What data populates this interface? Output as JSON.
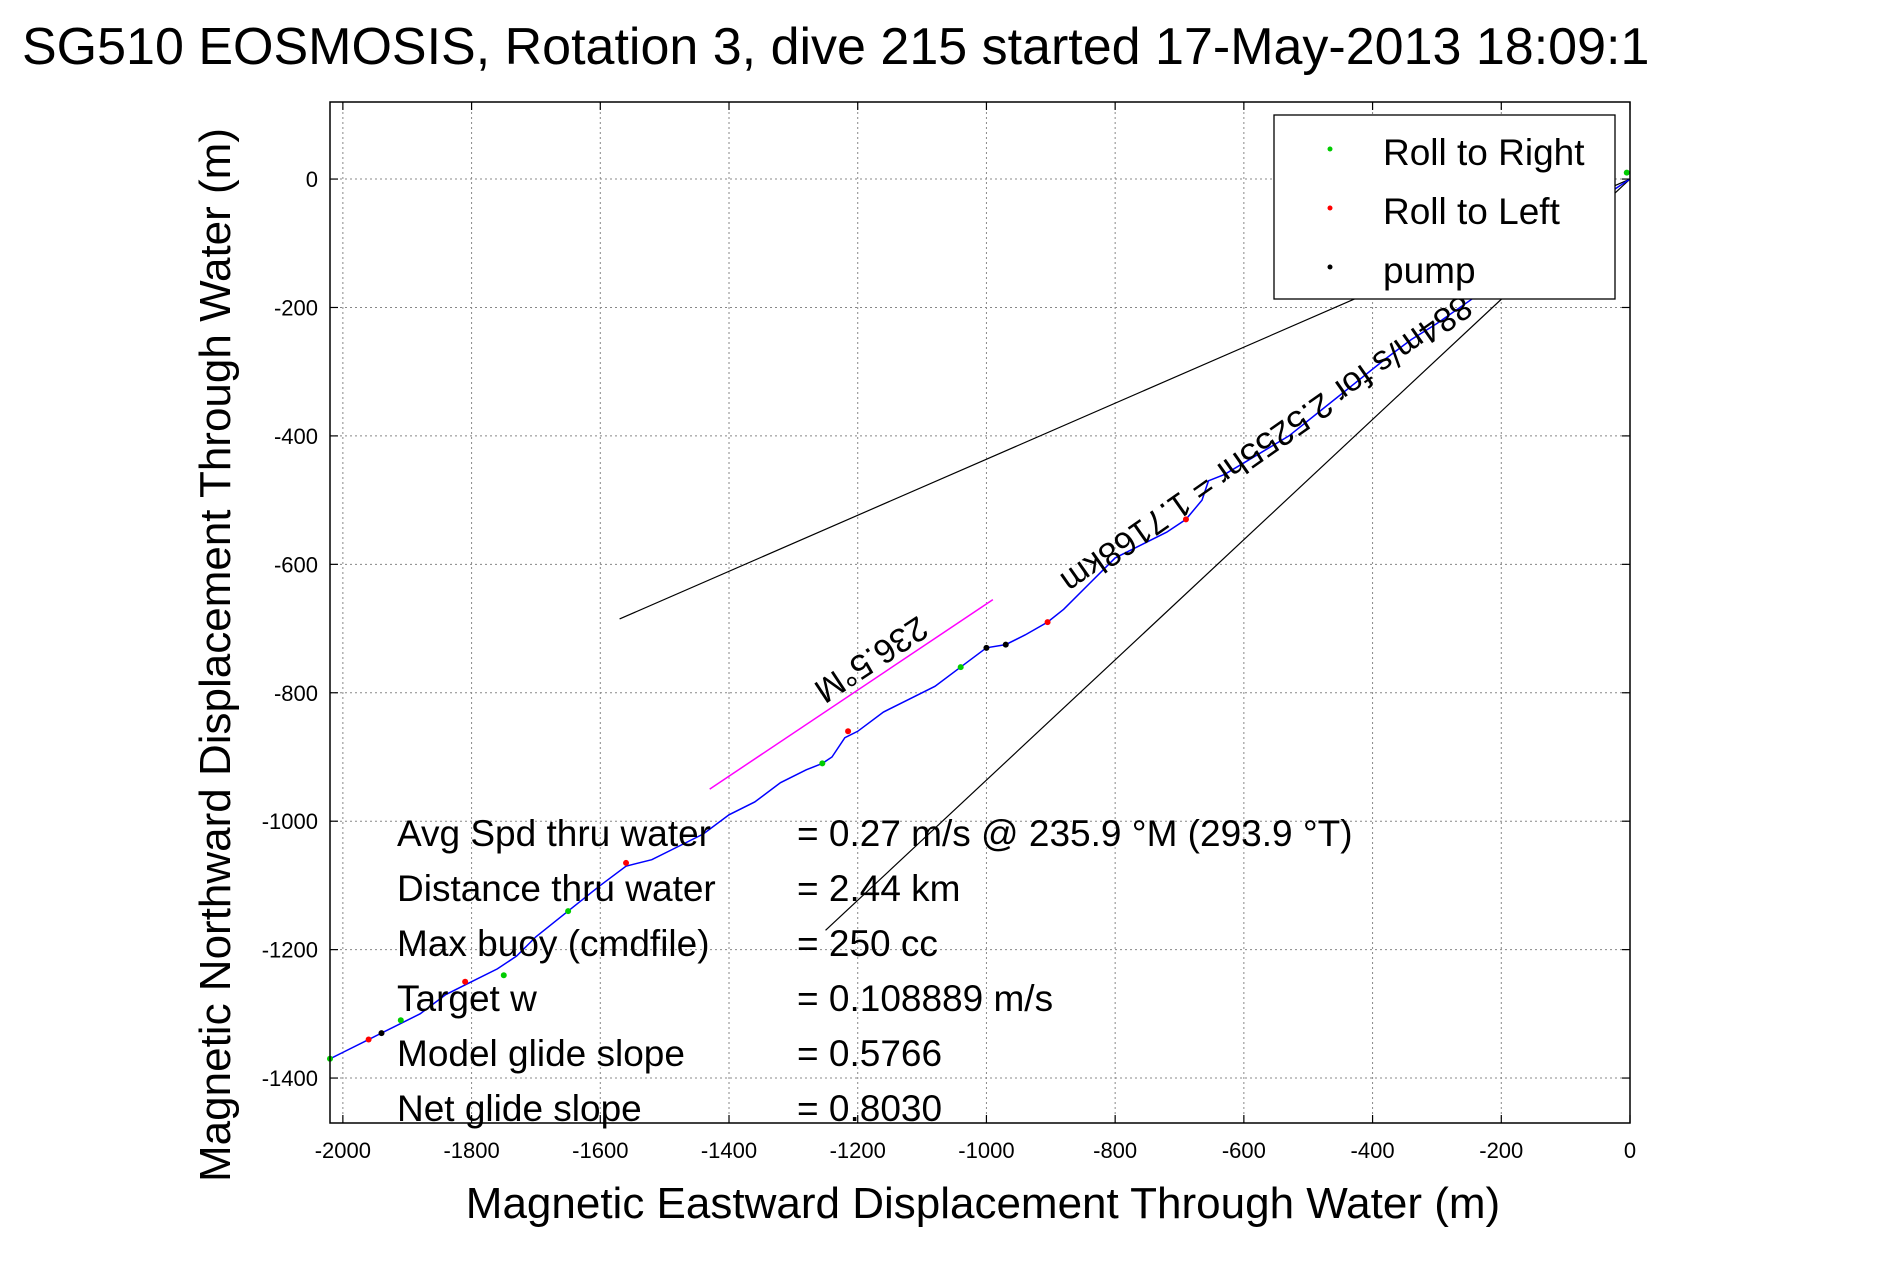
{
  "chart_data": {
    "type": "line",
    "title": "SG510 EOSMOSIS, Rotation 3, dive 215 started 17-May-2013 18:09:1",
    "xlabel": "Magnetic Eastward Displacement Through Water (m)",
    "ylabel": "Magnetic Northward Displacement Through Water (m)",
    "xlim": [
      -2020,
      0
    ],
    "ylim": [
      -1470,
      120
    ],
    "xticks": [
      -2000,
      -1800,
      -1600,
      -1400,
      -1200,
      -1000,
      -800,
      -600,
      -400,
      -200,
      0
    ],
    "yticks": [
      0,
      -200,
      -400,
      -600,
      -800,
      -1000,
      -1200,
      -1400
    ],
    "grid": true,
    "legend": {
      "position": "top-right",
      "entries": [
        {
          "label": "Roll to Right",
          "color": "#00cc00"
        },
        {
          "label": "Roll to Left",
          "color": "#ff0000"
        },
        {
          "label": "pump",
          "color": "#000000"
        }
      ]
    },
    "series": [
      {
        "role": "track",
        "color": "#0000ff",
        "x": [
          0,
          -60,
          -120,
          -180,
          -250,
          -300,
          -340,
          -380,
          -430,
          -480,
          -530,
          -580,
          -630,
          -655,
          -665,
          -690,
          -720,
          -760,
          -800,
          -840,
          -880,
          -905,
          -940,
          -970,
          -1000,
          -1040,
          -1080,
          -1120,
          -1160,
          -1200,
          -1220,
          -1240,
          -1255,
          -1280,
          -1320,
          -1360,
          -1400,
          -1440,
          -1480,
          -1520,
          -1560,
          -1600,
          -1650,
          -1700,
          -1730,
          -1760,
          -1800,
          -1840,
          -1880,
          -1920,
          -1960,
          -2000,
          -2020
        ],
        "y": [
          0,
          -40,
          -90,
          -140,
          -190,
          -225,
          -250,
          -280,
          -320,
          -360,
          -400,
          -430,
          -460,
          -470,
          -500,
          -530,
          -550,
          -570,
          -590,
          -630,
          -670,
          -690,
          -710,
          -725,
          -730,
          -760,
          -790,
          -810,
          -830,
          -860,
          -870,
          -900,
          -910,
          -920,
          -940,
          -970,
          -990,
          -1020,
          -1040,
          -1060,
          -1070,
          -1100,
          -1140,
          -1180,
          -1210,
          -1230,
          -1250,
          -1270,
          -1300,
          -1320,
          -1340,
          -1360,
          -1370
        ]
      },
      {
        "role": "heading-line",
        "color": "#ff00ff",
        "x": [
          -1430,
          -990
        ],
        "y": [
          -950,
          -655
        ]
      }
    ],
    "cone_lines": [
      {
        "x": [
          0,
          -1570
        ],
        "y": [
          0,
          -685
        ]
      },
      {
        "x": [
          0,
          -1250
        ],
        "y": [
          0,
          -1170
        ]
      }
    ],
    "markers": [
      {
        "type": "Roll to Right",
        "x": -1255,
        "y": -910
      },
      {
        "type": "Roll to Right",
        "x": -1040,
        "y": -760
      },
      {
        "type": "Roll to Right",
        "x": -1650,
        "y": -1140
      },
      {
        "type": "Roll to Right",
        "x": -1750,
        "y": -1240
      },
      {
        "type": "Roll to Right",
        "x": -1910,
        "y": -1310
      },
      {
        "type": "Roll to Right",
        "x": -2020,
        "y": -1370
      },
      {
        "type": "Roll to Right",
        "x": -5,
        "y": 10
      },
      {
        "type": "Roll to Left",
        "x": -1215,
        "y": -860
      },
      {
        "type": "Roll to Left",
        "x": -1560,
        "y": -1065
      },
      {
        "type": "Roll to Left",
        "x": -1810,
        "y": -1250
      },
      {
        "type": "Roll to Left",
        "x": -1960,
        "y": -1340
      },
      {
        "type": "Roll to Left",
        "x": -690,
        "y": -530
      },
      {
        "type": "Roll to Left",
        "x": -905,
        "y": -690
      },
      {
        "type": "pump",
        "x": -970,
        "y": -725
      },
      {
        "type": "pump",
        "x": -1000,
        "y": -730
      },
      {
        "type": "pump",
        "x": -1940,
        "y": -1330
      }
    ],
    "annotations": {
      "heading": "236.5°M",
      "speed_line": "884m/s for 2.5255hr = 1.7168km"
    },
    "stats": [
      {
        "label": "Avg Spd thru water",
        "value": "=  0.27 m/s @ 235.9 °M (293.9 °T)"
      },
      {
        "label": "Distance thru water",
        "value": "=  2.44 km"
      },
      {
        "label": "Max buoy (cmdfile)",
        "value": "= 250 cc"
      },
      {
        "label": "Target w",
        "value": "= 0.108889 m/s"
      },
      {
        "label": "Model glide slope",
        "value": "= 0.5766"
      },
      {
        "label": "Net glide slope",
        "value": "= 0.8030"
      }
    ]
  }
}
